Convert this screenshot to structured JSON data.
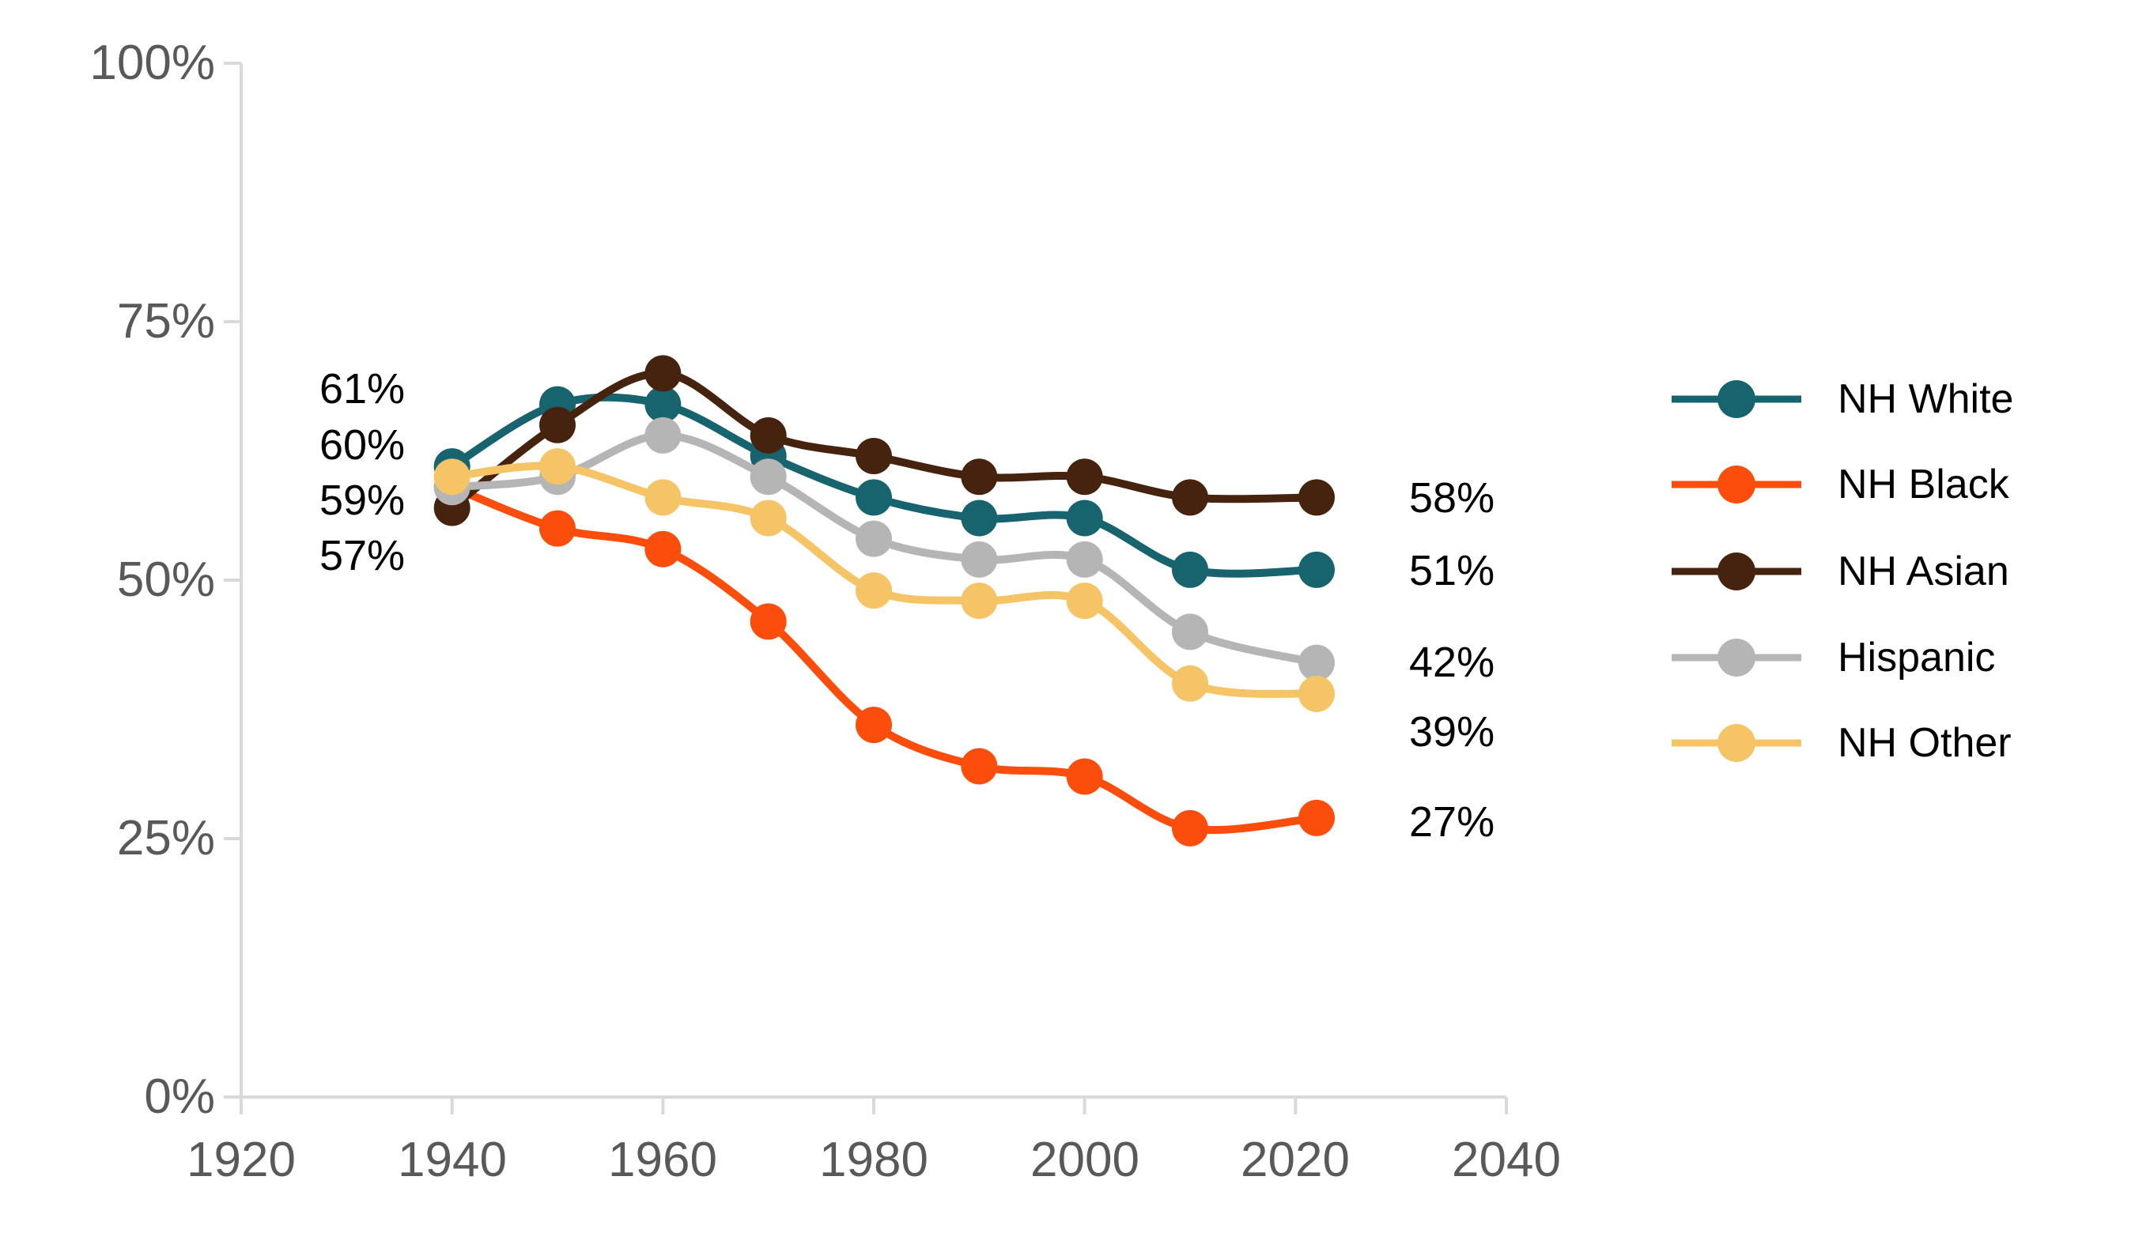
{
  "chart_data": {
    "type": "line",
    "title": "",
    "xlabel": "",
    "ylabel": "",
    "xlim": [
      1920,
      2040
    ],
    "ylim": [
      0,
      100
    ],
    "grid": false,
    "legend_position": "right",
    "x": [
      1940,
      1950,
      1960,
      1970,
      1980,
      1990,
      2000,
      2010,
      2022
    ],
    "series": [
      {
        "name": "NH White",
        "color": "#17646F",
        "values": [
          61,
          67,
          67,
          62,
          58,
          56,
          56,
          51,
          51
        ]
      },
      {
        "name": "NH Black",
        "color": "#FB4D0C",
        "values": [
          59,
          55,
          53,
          46,
          36,
          32,
          31,
          26,
          27
        ]
      },
      {
        "name": "NH Asian",
        "color": "#45230F",
        "values": [
          57,
          65,
          70,
          64,
          62,
          60,
          60,
          58,
          58
        ]
      },
      {
        "name": "Hispanic",
        "color": "#B5B5B5",
        "values": [
          59,
          60,
          64,
          60,
          54,
          52,
          52,
          45,
          42
        ]
      },
      {
        "name": "NH Other",
        "color": "#F5C467",
        "values": [
          60,
          61,
          58,
          56,
          49,
          48,
          48,
          40,
          39
        ]
      }
    ],
    "x_ticks": [
      {
        "label": "1920",
        "value": 1920
      },
      {
        "label": "1940",
        "value": 1940
      },
      {
        "label": "1960",
        "value": 1960
      },
      {
        "label": "1980",
        "value": 1980
      },
      {
        "label": "2000",
        "value": 2000
      },
      {
        "label": "2020",
        "value": 2020
      },
      {
        "label": "2040",
        "value": 2040
      }
    ],
    "y_ticks": [
      {
        "label": "0%",
        "value": 0
      },
      {
        "label": "25%",
        "value": 25
      },
      {
        "label": "50%",
        "value": 50
      },
      {
        "label": "75%",
        "value": 75
      },
      {
        "label": "100%",
        "value": 100
      }
    ],
    "start_labels": [
      {
        "text": "61%",
        "series": "NH White"
      },
      {
        "text": "60%",
        "series": "NH Other"
      },
      {
        "text": "59%",
        "series": "NH Black, Hispanic"
      },
      {
        "text": "57%",
        "series": "NH Asian"
      }
    ],
    "end_labels": [
      {
        "text": "58%",
        "series": "NH Asian"
      },
      {
        "text": "51%",
        "series": "NH White"
      },
      {
        "text": "42%",
        "series": "Hispanic"
      },
      {
        "text": "39%",
        "series": "NH Other"
      },
      {
        "text": "27%",
        "series": "NH Black"
      }
    ]
  },
  "legend": {
    "items": [
      {
        "label": "NH White"
      },
      {
        "label": "NH Black"
      },
      {
        "label": "NH Asian"
      },
      {
        "label": "Hispanic"
      },
      {
        "label": "NH Other"
      }
    ]
  }
}
